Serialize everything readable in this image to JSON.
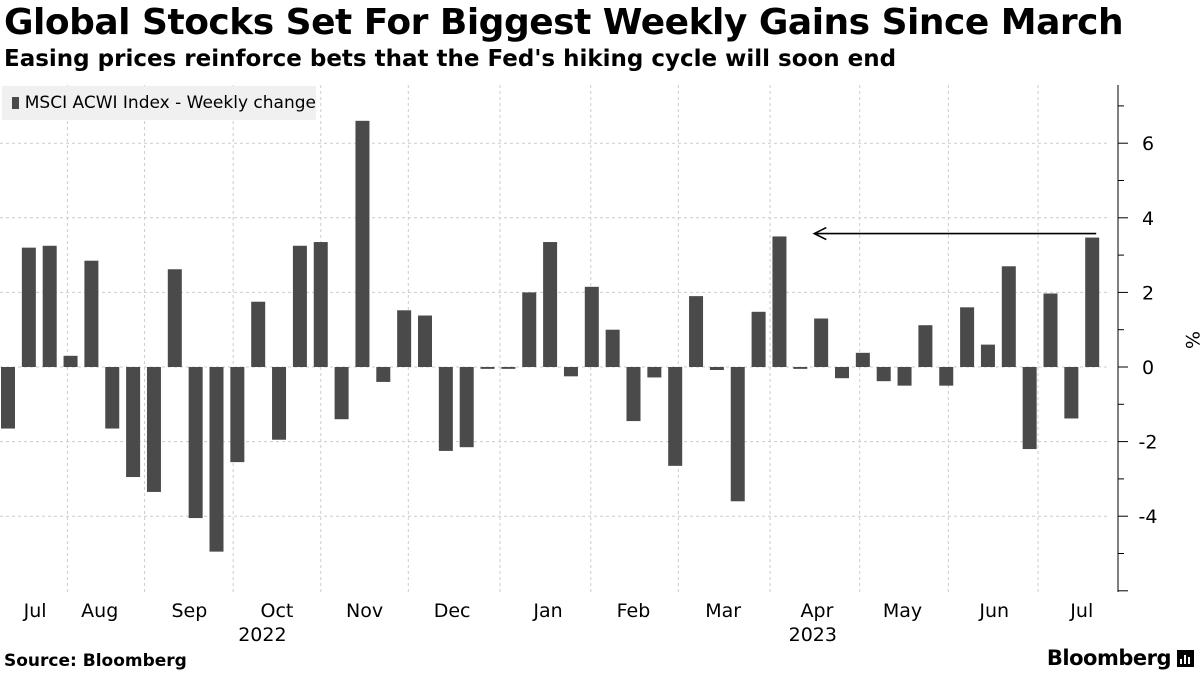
{
  "header": {
    "title": "Global Stocks Set For Biggest Weekly Gains Since March",
    "subtitle": "Easing prices reinforce bets that the Fed's hiking cycle will soon end"
  },
  "footer": {
    "source": "Source: Bloomberg",
    "brand": "Bloomberg"
  },
  "colors": {
    "bar": "#4a4a4a",
    "grid": "#cccccc",
    "axis": "#000000"
  },
  "chart_data": {
    "type": "bar",
    "ylabel": "%",
    "ylim": [
      -6,
      7.6
    ],
    "y_ticks": [
      6,
      4,
      2,
      0,
      -2,
      -4
    ],
    "grid": true,
    "legend_position": "top-left",
    "series": [
      {
        "name": "MSCI ACWI Index - Weekly change",
        "values": [
          -1.65,
          3.2,
          3.25,
          0.3,
          2.85,
          -1.65,
          -2.95,
          -3.35,
          2.62,
          -4.05,
          -4.95,
          -2.55,
          1.75,
          -1.95,
          3.25,
          3.35,
          -1.4,
          6.6,
          -0.4,
          1.52,
          1.38,
          -2.25,
          -2.15,
          -0.05,
          -0.05,
          2.0,
          3.35,
          -0.25,
          2.15,
          1.0,
          -1.45,
          -0.28,
          -2.65,
          1.9,
          -0.08,
          -3.6,
          1.48,
          3.5,
          -0.05,
          1.3,
          -0.3,
          0.38,
          -0.38,
          -0.5,
          1.12,
          -0.5,
          1.6,
          0.6,
          2.7,
          -2.2,
          1.97,
          -1.38,
          3.47
        ]
      }
    ],
    "x_month_labels": [
      "Jul",
      "Aug",
      "Sep",
      "Oct",
      "Nov",
      "Dec",
      "Jan",
      "Feb",
      "Mar",
      "Apr",
      "May",
      "Jun",
      "Jul"
    ],
    "x_month_label_bar_positions": [
      1.3,
      4.4,
      8.7,
      12.9,
      17.1,
      21.3,
      25.9,
      30.0,
      34.3,
      38.8,
      42.9,
      47.3,
      51.5
    ],
    "x_year_labels": [
      "2022",
      "2023"
    ],
    "x_year_label_bar_positions": [
      12.2,
      38.6
    ],
    "annotation": {
      "type": "arrow",
      "from_bar": 52,
      "to_bar": 38,
      "value": 3.47
    }
  }
}
